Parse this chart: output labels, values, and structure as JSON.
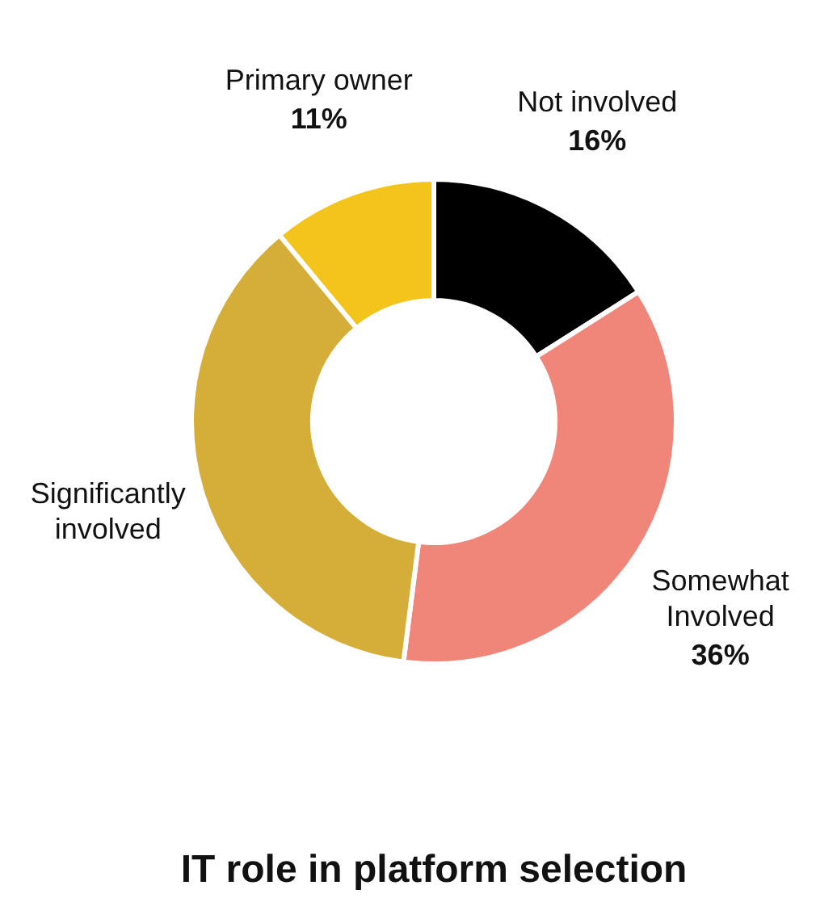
{
  "chart_data": {
    "type": "donut",
    "title": "IT role in platform selection",
    "categories": [
      "Not involved",
      "Somewhat Involved",
      "Significantly involved",
      "Primary owner"
    ],
    "values": [
      16,
      36,
      37,
      11
    ],
    "colors": [
      "#000000",
      "#f0857a",
      "#d4ae38",
      "#f2c41c"
    ],
    "value_labels": [
      "16%",
      "36%",
      null,
      "11%"
    ],
    "legend": false
  }
}
